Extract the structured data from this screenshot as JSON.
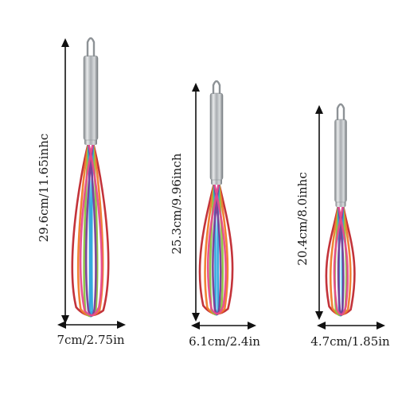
{
  "whisks": [
    {
      "height_label": "29.6cm/11.65inhc",
      "width_label": "7cm/2.75in"
    },
    {
      "height_label": "25.3cm/9.96inch",
      "width_label": "6.1cm/2.4in"
    },
    {
      "height_label": "20.4cm/8.0inhc",
      "width_label": "4.7cm/1.85in"
    }
  ],
  "colors": {
    "wires": [
      "#c0282f",
      "#f07a2a",
      "#8bc43f",
      "#2aa5dc",
      "#7a3c95",
      "#e84a8c"
    ],
    "steel": "#b8bcc0",
    "arrow": "#111111"
  }
}
